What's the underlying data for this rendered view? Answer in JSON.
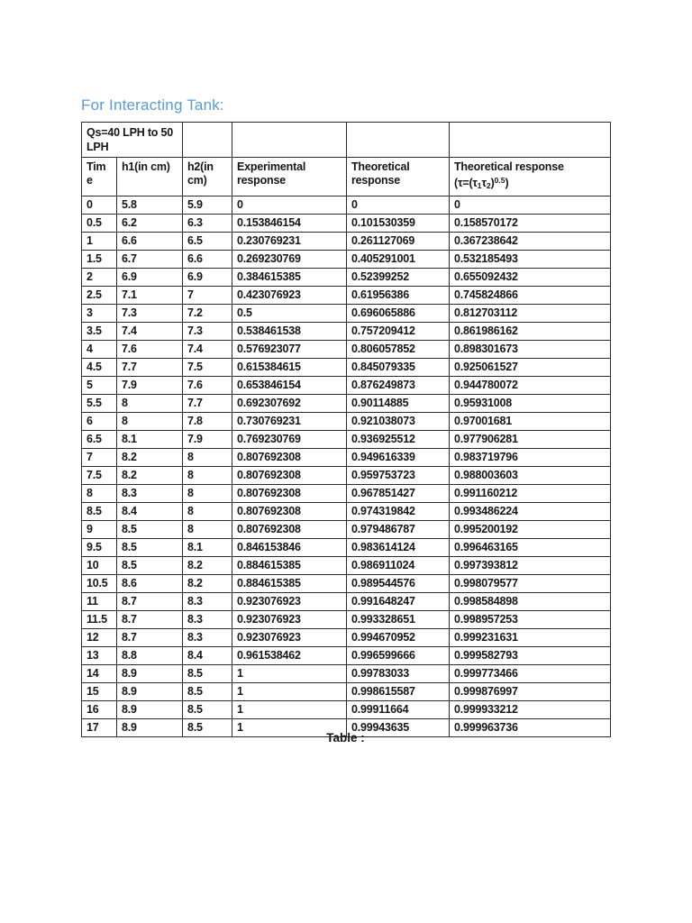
{
  "page": {
    "heading": "For Interacting Tank:",
    "caption": "Table :"
  },
  "table": {
    "qs_label": "Qs=40 LPH to 50 LPH",
    "header": {
      "time": "Time",
      "h1": "h1(in cm)",
      "h2": "h2(in cm)",
      "experimental": "Experimental response",
      "theoretical": "Theoretical response",
      "theoretical_tau_line1": "Theoretical response",
      "formula": {
        "p1": "(τ=(τ",
        "sub1": "1",
        "p2": "τ",
        "sub2": "2",
        "p3": ")",
        "sup": "0.5",
        "p4": ")"
      }
    },
    "rows": [
      [
        "0",
        "5.8",
        "5.9",
        "0",
        "0",
        "0"
      ],
      [
        "0.5",
        "6.2",
        "6.3",
        "0.153846154",
        "0.101530359",
        "0.158570172"
      ],
      [
        "1",
        "6.6",
        "6.5",
        "0.230769231",
        "0.261127069",
        "0.367238642"
      ],
      [
        "1.5",
        "6.7",
        "6.6",
        "0.269230769",
        "0.405291001",
        "0.532185493"
      ],
      [
        "2",
        "6.9",
        "6.9",
        "0.384615385",
        "0.52399252",
        "0.655092432"
      ],
      [
        "2.5",
        "7.1",
        "7",
        "0.423076923",
        "0.61956386",
        "0.745824866"
      ],
      [
        "3",
        "7.3",
        "7.2",
        "0.5",
        "0.696065886",
        "0.812703112"
      ],
      [
        "3.5",
        "7.4",
        "7.3",
        "0.538461538",
        "0.757209412",
        "0.861986162"
      ],
      [
        "4",
        "7.6",
        "7.4",
        "0.576923077",
        "0.806057852",
        "0.898301673"
      ],
      [
        "4.5",
        "7.7",
        "7.5",
        "0.615384615",
        "0.845079335",
        "0.925061527"
      ],
      [
        "5",
        "7.9",
        "7.6",
        "0.653846154",
        "0.876249873",
        "0.944780072"
      ],
      [
        "5.5",
        "8",
        "7.7",
        "0.692307692",
        "0.90114885",
        "0.95931008"
      ],
      [
        "6",
        "8",
        "7.8",
        "0.730769231",
        "0.921038073",
        "0.97001681"
      ],
      [
        "6.5",
        "8.1",
        "7.9",
        "0.769230769",
        "0.936925512",
        "0.977906281"
      ],
      [
        "7",
        "8.2",
        "8",
        "0.807692308",
        "0.949616339",
        "0.983719796"
      ],
      [
        "7.5",
        "8.2",
        "8",
        "0.807692308",
        "0.959753723",
        "0.988003603"
      ],
      [
        "8",
        "8.3",
        "8",
        "0.807692308",
        "0.967851427",
        "0.991160212"
      ],
      [
        "8.5",
        "8.4",
        "8",
        "0.807692308",
        "0.974319842",
        "0.993486224"
      ],
      [
        "9",
        "8.5",
        "8",
        "0.807692308",
        "0.979486787",
        "0.995200192"
      ],
      [
        "9.5",
        "8.5",
        "8.1",
        "0.846153846",
        "0.983614124",
        "0.996463165"
      ],
      [
        "10",
        "8.5",
        "8.2",
        "0.884615385",
        "0.986911024",
        "0.997393812"
      ],
      [
        "10.5",
        "8.6",
        "8.2",
        "0.884615385",
        "0.989544576",
        "0.998079577"
      ],
      [
        "11",
        "8.7",
        "8.3",
        "0.923076923",
        "0.991648247",
        "0.998584898"
      ],
      [
        "11.5",
        "8.7",
        "8.3",
        "0.923076923",
        "0.993328651",
        "0.998957253"
      ],
      [
        "12",
        "8.7",
        "8.3",
        "0.923076923",
        "0.994670952",
        "0.999231631"
      ],
      [
        "13",
        "8.8",
        "8.4",
        "0.961538462",
        "0.996599666",
        "0.999582793"
      ],
      [
        "14",
        "8.9",
        "8.5",
        "1",
        "0.99783033",
        "0.999773466"
      ],
      [
        "15",
        "8.9",
        "8.5",
        "1",
        "0.998615587",
        "0.999876997"
      ],
      [
        "16",
        "8.9",
        "8.5",
        "1",
        "0.99911664",
        "0.999933212"
      ],
      [
        "17",
        "8.9",
        "8.5",
        "1",
        "0.99943635",
        "0.999963736"
      ]
    ]
  }
}
